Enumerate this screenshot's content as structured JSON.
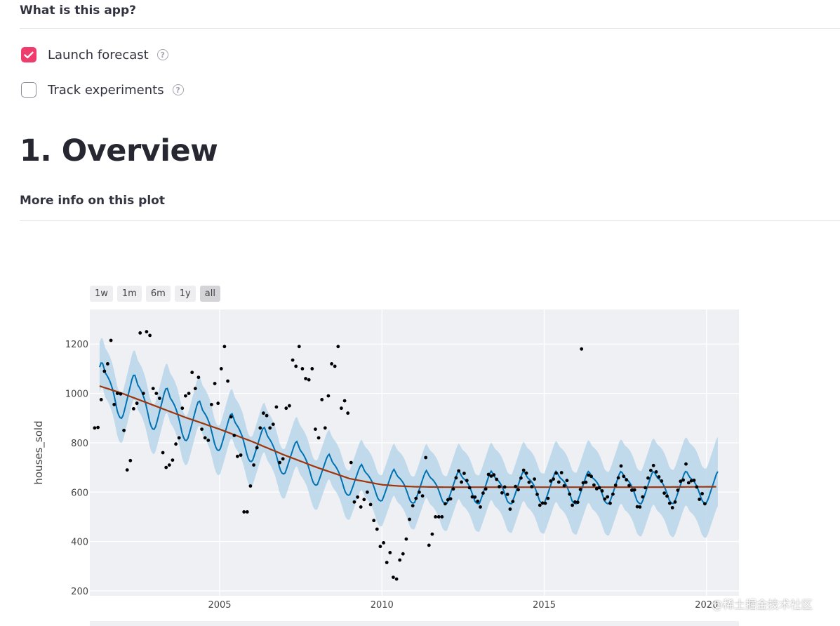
{
  "header": {
    "title": "What is this app?"
  },
  "options": [
    {
      "label": "Launch forecast",
      "checked": true,
      "help_icon": "question-circle-icon"
    },
    {
      "label": "Track experiments",
      "checked": false,
      "help_icon": "question-circle-icon"
    }
  ],
  "overview": {
    "heading": "1. Overview",
    "subheading": "More info on this plot"
  },
  "range_selector": [
    {
      "label": "1w",
      "active": false
    },
    {
      "label": "1m",
      "active": false
    },
    {
      "label": "6m",
      "active": false
    },
    {
      "label": "1y",
      "active": false
    },
    {
      "label": "all",
      "active": true
    }
  ],
  "watermark": "@稀土掘金技术社区",
  "chart_data": {
    "type": "line",
    "ylabel": "houses_sold",
    "xlabel": "",
    "xlim": [
      2001.0,
      2021.0
    ],
    "ylim": [
      180,
      1340
    ],
    "x_ticks": [
      2005,
      2010,
      2015,
      2020
    ],
    "y_ticks": [
      200,
      400,
      600,
      800,
      1000,
      1200
    ],
    "grid": true,
    "colors": {
      "plot_bg": "#eef0f4",
      "forecast": "#0072b2",
      "band": "#b7d6ea",
      "trend": "#a0340a",
      "points": "#000000"
    },
    "series": [
      {
        "role": "trend",
        "points": [
          [
            2001.3,
            1030
          ],
          [
            2002.0,
            1000
          ],
          [
            2003.0,
            950
          ],
          [
            2004.0,
            900
          ],
          [
            2005.0,
            855
          ],
          [
            2006.0,
            805
          ],
          [
            2007.0,
            750
          ],
          [
            2008.0,
            700
          ],
          [
            2009.0,
            655
          ],
          [
            2010.0,
            630
          ],
          [
            2010.5,
            625
          ],
          [
            2011.0,
            622
          ],
          [
            2012.0,
            620
          ],
          [
            2014.0,
            620
          ],
          [
            2016.0,
            620
          ],
          [
            2018.0,
            620
          ],
          [
            2020.3,
            622
          ]
        ]
      },
      {
        "role": "forecast",
        "base": 1080,
        "amplitude": 150,
        "start": 2001.3,
        "end": 2020.35
      }
    ],
    "observations": [
      [
        2001.15,
        860
      ],
      [
        2001.25,
        862
      ],
      [
        2001.35,
        975
      ],
      [
        2001.45,
        1090
      ],
      [
        2001.55,
        1120
      ],
      [
        2001.65,
        1215
      ],
      [
        2001.75,
        955
      ],
      [
        2001.85,
        1000
      ],
      [
        2001.95,
        998
      ],
      [
        2002.05,
        850
      ],
      [
        2002.15,
        690
      ],
      [
        2002.25,
        728
      ],
      [
        2002.35,
        938
      ],
      [
        2002.45,
        960
      ],
      [
        2002.55,
        1245
      ],
      [
        2002.65,
        1000
      ],
      [
        2002.75,
        1250
      ],
      [
        2002.85,
        1235
      ],
      [
        2002.95,
        1020
      ],
      [
        2003.05,
        1000
      ],
      [
        2003.15,
        980
      ],
      [
        2003.25,
        760
      ],
      [
        2003.35,
        700
      ],
      [
        2003.45,
        710
      ],
      [
        2003.55,
        730
      ],
      [
        2003.65,
        795
      ],
      [
        2003.75,
        820
      ],
      [
        2003.85,
        940
      ],
      [
        2003.95,
        990
      ],
      [
        2004.05,
        1000
      ],
      [
        2004.15,
        1085
      ],
      [
        2004.25,
        1020
      ],
      [
        2004.35,
        1065
      ],
      [
        2004.45,
        855
      ],
      [
        2004.55,
        820
      ],
      [
        2004.65,
        810
      ],
      [
        2004.75,
        955
      ],
      [
        2004.85,
        1040
      ],
      [
        2004.95,
        960
      ],
      [
        2005.05,
        1100
      ],
      [
        2005.15,
        1190
      ],
      [
        2005.25,
        1050
      ],
      [
        2005.35,
        905
      ],
      [
        2005.45,
        830
      ],
      [
        2005.55,
        745
      ],
      [
        2005.65,
        750
      ],
      [
        2005.75,
        520
      ],
      [
        2005.85,
        520
      ],
      [
        2005.95,
        625
      ],
      [
        2006.05,
        710
      ],
      [
        2006.15,
        780
      ],
      [
        2006.25,
        860
      ],
      [
        2006.35,
        920
      ],
      [
        2006.45,
        910
      ],
      [
        2006.55,
        860
      ],
      [
        2006.65,
        875
      ],
      [
        2006.75,
        945
      ],
      [
        2006.85,
        720
      ],
      [
        2006.95,
        735
      ],
      [
        2007.05,
        940
      ],
      [
        2007.15,
        950
      ],
      [
        2007.25,
        1135
      ],
      [
        2007.35,
        1110
      ],
      [
        2007.45,
        1190
      ],
      [
        2007.55,
        1100
      ],
      [
        2007.65,
        1060
      ],
      [
        2007.75,
        1055
      ],
      [
        2007.85,
        1100
      ],
      [
        2007.95,
        855
      ],
      [
        2008.05,
        820
      ],
      [
        2008.15,
        975
      ],
      [
        2008.25,
        860
      ],
      [
        2008.35,
        990
      ],
      [
        2008.45,
        1120
      ],
      [
        2008.55,
        1110
      ],
      [
        2008.65,
        1190
      ],
      [
        2008.75,
        940
      ],
      [
        2008.85,
        970
      ],
      [
        2008.95,
        920
      ],
      [
        2009.05,
        720
      ],
      [
        2009.15,
        560
      ],
      [
        2009.25,
        580
      ],
      [
        2009.35,
        540
      ],
      [
        2009.45,
        570
      ],
      [
        2009.55,
        600
      ],
      [
        2009.65,
        550
      ],
      [
        2009.75,
        485
      ],
      [
        2009.85,
        450
      ],
      [
        2009.95,
        380
      ],
      [
        2010.05,
        395
      ],
      [
        2010.15,
        315
      ],
      [
        2010.25,
        355
      ],
      [
        2010.35,
        255
      ],
      [
        2010.45,
        248
      ],
      [
        2010.55,
        325
      ],
      [
        2010.65,
        350
      ],
      [
        2010.75,
        410
      ],
      [
        2010.85,
        490
      ],
      [
        2010.95,
        545
      ],
      [
        2011.05,
        575
      ],
      [
        2011.15,
        600
      ],
      [
        2011.25,
        585
      ],
      [
        2011.35,
        740
      ],
      [
        2011.45,
        385
      ],
      [
        2011.55,
        430
      ],
      [
        2011.65,
        500
      ],
      [
        2011.75,
        500
      ],
      [
        2011.85,
        500
      ]
    ]
  }
}
